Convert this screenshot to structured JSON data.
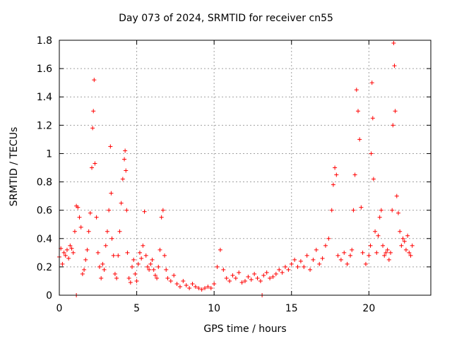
{
  "chart_data": {
    "type": "scatter",
    "title": "Day 073 of 2024, SRMTID for receiver cn55",
    "xlabel": "GPS time / hours",
    "ylabel": "SRMTID / TECUs",
    "xlim": [
      0,
      24
    ],
    "ylim": [
      0,
      1.8
    ],
    "xticks": [
      0,
      5,
      10,
      15,
      20
    ],
    "yticks": [
      0,
      0.2,
      0.4,
      0.6,
      0.8,
      1,
      1.2,
      1.4,
      1.6,
      1.8
    ],
    "xtick_labels": [
      "0",
      "5",
      "10",
      "15",
      "20"
    ],
    "ytick_labels": [
      "0",
      "0.2",
      "0.4",
      "0.6",
      "0.8",
      "1",
      "1.2",
      "1.4",
      "1.6",
      "1.8"
    ],
    "grid": true,
    "marker": "+",
    "color": "#ff0000",
    "series": [
      {
        "name": "SRMTID",
        "x": [
          0.0,
          0.1,
          0.2,
          0.3,
          0.4,
          0.5,
          0.6,
          0.7,
          0.8,
          0.9,
          1.0,
          1.1,
          1.2,
          1.3,
          1.4,
          1.5,
          1.6,
          1.7,
          1.8,
          1.9,
          2.0,
          2.1,
          2.15,
          2.2,
          2.25,
          2.3,
          2.4,
          2.5,
          2.6,
          2.7,
          2.8,
          2.9,
          3.0,
          3.1,
          3.2,
          3.3,
          3.35,
          3.4,
          3.5,
          3.6,
          3.7,
          3.8,
          3.9,
          4.0,
          4.1,
          4.2,
          4.25,
          4.3,
          4.35,
          4.4,
          4.5,
          4.6,
          4.7,
          4.8,
          4.9,
          5.0,
          5.1,
          5.2,
          5.3,
          5.4,
          5.5,
          5.6,
          5.7,
          5.8,
          5.9,
          6.0,
          6.1,
          6.2,
          6.3,
          6.4,
          6.5,
          6.6,
          6.7,
          6.8,
          6.9,
          7.0,
          7.2,
          7.4,
          7.6,
          7.8,
          8.0,
          8.2,
          8.4,
          8.6,
          8.8,
          9.0,
          9.2,
          9.4,
          9.6,
          9.8,
          10.0,
          10.2,
          10.4,
          10.6,
          10.8,
          11.0,
          11.2,
          11.4,
          11.6,
          11.8,
          12.0,
          12.2,
          12.4,
          12.6,
          12.8,
          13.0,
          13.2,
          13.4,
          13.6,
          13.8,
          14.0,
          14.2,
          14.4,
          14.6,
          14.8,
          15.0,
          15.2,
          15.4,
          15.6,
          15.8,
          16.0,
          16.2,
          16.4,
          16.6,
          16.8,
          17.0,
          17.2,
          17.4,
          17.6,
          17.7,
          17.8,
          17.9,
          18.0,
          18.2,
          18.4,
          18.6,
          18.8,
          18.9,
          19.0,
          19.1,
          19.2,
          19.3,
          19.4,
          19.5,
          19.6,
          19.8,
          20.0,
          20.1,
          20.15,
          20.2,
          20.25,
          20.3,
          20.4,
          20.5,
          20.6,
          20.7,
          20.8,
          20.9,
          21.0,
          21.1,
          21.2,
          21.3,
          21.4,
          21.5,
          21.55,
          21.6,
          21.65,
          21.7,
          21.8,
          21.9,
          22.0,
          22.1,
          22.2,
          22.3,
          22.4,
          22.5,
          22.6,
          22.7,
          22.8,
          1.1,
          13.1
        ],
        "y": [
          0.27,
          0.33,
          0.22,
          0.3,
          0.28,
          0.32,
          0.26,
          0.35,
          0.33,
          0.3,
          0.45,
          0.63,
          0.62,
          0.55,
          0.48,
          0.15,
          0.18,
          0.25,
          0.32,
          0.45,
          0.58,
          0.9,
          1.18,
          1.3,
          1.52,
          0.93,
          0.55,
          0.3,
          0.2,
          0.12,
          0.22,
          0.18,
          0.35,
          0.45,
          0.6,
          1.05,
          0.72,
          0.4,
          0.28,
          0.15,
          0.12,
          0.28,
          0.45,
          0.65,
          0.82,
          0.96,
          1.02,
          0.88,
          0.6,
          0.3,
          0.12,
          0.09,
          0.2,
          0.25,
          0.15,
          0.1,
          0.22,
          0.3,
          0.26,
          0.35,
          0.59,
          0.28,
          0.2,
          0.18,
          0.22,
          0.25,
          0.18,
          0.14,
          0.12,
          0.2,
          0.32,
          0.55,
          0.6,
          0.28,
          0.18,
          0.12,
          0.1,
          0.14,
          0.08,
          0.06,
          0.1,
          0.07,
          0.05,
          0.08,
          0.06,
          0.05,
          0.04,
          0.05,
          0.06,
          0.05,
          0.08,
          0.2,
          0.32,
          0.18,
          0.12,
          0.1,
          0.14,
          0.12,
          0.16,
          0.09,
          0.1,
          0.13,
          0.11,
          0.15,
          0.12,
          0.1,
          0.14,
          0.16,
          0.12,
          0.13,
          0.15,
          0.18,
          0.16,
          0.2,
          0.18,
          0.22,
          0.25,
          0.2,
          0.24,
          0.2,
          0.28,
          0.18,
          0.25,
          0.32,
          0.22,
          0.26,
          0.35,
          0.4,
          0.6,
          0.78,
          0.9,
          0.85,
          0.28,
          0.25,
          0.3,
          0.22,
          0.28,
          0.32,
          0.6,
          0.85,
          1.45,
          1.3,
          1.1,
          0.62,
          0.3,
          0.22,
          0.28,
          0.35,
          1.0,
          1.5,
          1.25,
          0.82,
          0.45,
          0.3,
          0.42,
          0.55,
          0.6,
          0.35,
          0.28,
          0.3,
          0.32,
          0.25,
          0.3,
          0.6,
          1.2,
          1.78,
          1.62,
          1.3,
          0.7,
          0.58,
          0.45,
          0.35,
          0.4,
          0.38,
          0.32,
          0.42,
          0.3,
          0.28,
          0.35,
          0.0,
          0.0
        ]
      }
    ]
  }
}
